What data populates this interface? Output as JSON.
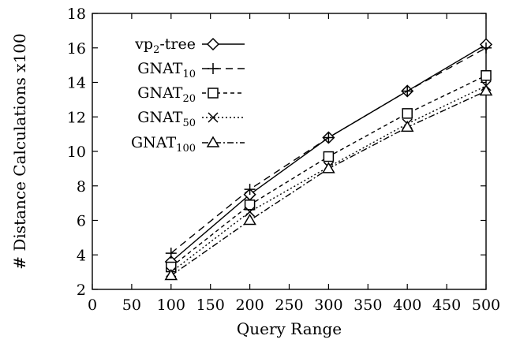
{
  "chart_data": {
    "type": "line",
    "title": "",
    "xlabel": "Query Range",
    "ylabel": "# Distance Calculations x100",
    "xlim": [
      0,
      500
    ],
    "ylim": [
      2,
      18
    ],
    "xticks": [
      "0",
      "50",
      "100",
      "150",
      "200",
      "250",
      "300",
      "350",
      "400",
      "450",
      "500"
    ],
    "yticks": [
      "2",
      "4",
      "6",
      "8",
      "10",
      "12",
      "14",
      "16",
      "18"
    ],
    "grid": false,
    "legend_position": "top-left",
    "x": [
      100,
      200,
      300,
      400,
      500
    ],
    "series": [
      {
        "name": "vp2-tree",
        "base": "vp",
        "sub": "2",
        "suffix": "-tree",
        "marker": "diamond",
        "dash": "none",
        "values": [
          3.6,
          7.5,
          10.8,
          13.5,
          16.2
        ]
      },
      {
        "name": "GNAT10",
        "base": "GNAT",
        "sub": "10",
        "suffix": "",
        "marker": "plus",
        "dash": "9,6",
        "values": [
          4.1,
          7.8,
          10.8,
          13.5,
          16.0
        ]
      },
      {
        "name": "GNAT20",
        "base": "GNAT",
        "sub": "20",
        "suffix": "",
        "marker": "square",
        "dash": "5,4",
        "values": [
          3.3,
          6.9,
          9.7,
          12.2,
          14.4
        ]
      },
      {
        "name": "GNAT50",
        "base": "GNAT",
        "sub": "50",
        "suffix": "",
        "marker": "x",
        "dash": "2,3",
        "values": [
          3.0,
          6.5,
          9.1,
          11.6,
          13.8
        ]
      },
      {
        "name": "GNAT100",
        "base": "GNAT",
        "sub": "100",
        "suffix": "",
        "marker": "triangle",
        "dash": "8,3,2,3",
        "values": [
          2.8,
          6.0,
          9.0,
          11.4,
          13.5
        ]
      }
    ]
  }
}
